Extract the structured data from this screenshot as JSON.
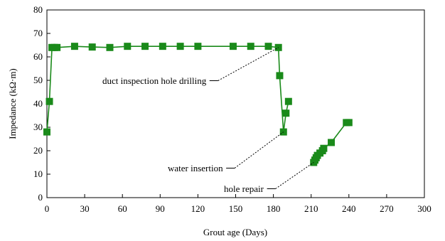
{
  "chart_data": {
    "type": "line",
    "title": "",
    "xlabel": "Grout age (Days)",
    "ylabel": "Impedance (kΩ·m)",
    "xlim": [
      0,
      300
    ],
    "ylim": [
      0,
      80
    ],
    "xticks": [
      0,
      30,
      60,
      90,
      120,
      150,
      180,
      210,
      240,
      270,
      300
    ],
    "yticks": [
      0,
      10,
      20,
      30,
      40,
      50,
      60,
      70,
      80
    ],
    "grid": false,
    "series_color": "#1a8a1a",
    "series": [
      {
        "points": [
          [
            0,
            28
          ],
          [
            2,
            41
          ],
          [
            4,
            64
          ],
          [
            6,
            64
          ],
          [
            8,
            64
          ],
          [
            22,
            64.5
          ],
          [
            36,
            64.2
          ],
          [
            50,
            64
          ],
          [
            64,
            64.5
          ],
          [
            78,
            64.5
          ],
          [
            92,
            64.5
          ],
          [
            106,
            64.5
          ],
          [
            120,
            64.5
          ],
          [
            148,
            64.5
          ],
          [
            162,
            64.5
          ],
          [
            176,
            64.5
          ],
          [
            184,
            64
          ],
          [
            185,
            52
          ],
          [
            188,
            28
          ],
          [
            190,
            36
          ],
          [
            192,
            41
          ]
        ]
      },
      {
        "points": [
          [
            212,
            15
          ],
          [
            213,
            16
          ],
          [
            214,
            17
          ],
          [
            215,
            18
          ],
          [
            217,
            19
          ],
          [
            219,
            20
          ],
          [
            220,
            21
          ],
          [
            226,
            23.5
          ],
          [
            238,
            32
          ],
          [
            240,
            32
          ]
        ]
      }
    ],
    "annotations": [
      {
        "text": "duct inspection hole drilling",
        "x": 184,
        "y": 64
      },
      {
        "text": "water insertion",
        "x": 188,
        "y": 28
      },
      {
        "text": "hole repair",
        "x": 212,
        "y": 15
      }
    ]
  }
}
